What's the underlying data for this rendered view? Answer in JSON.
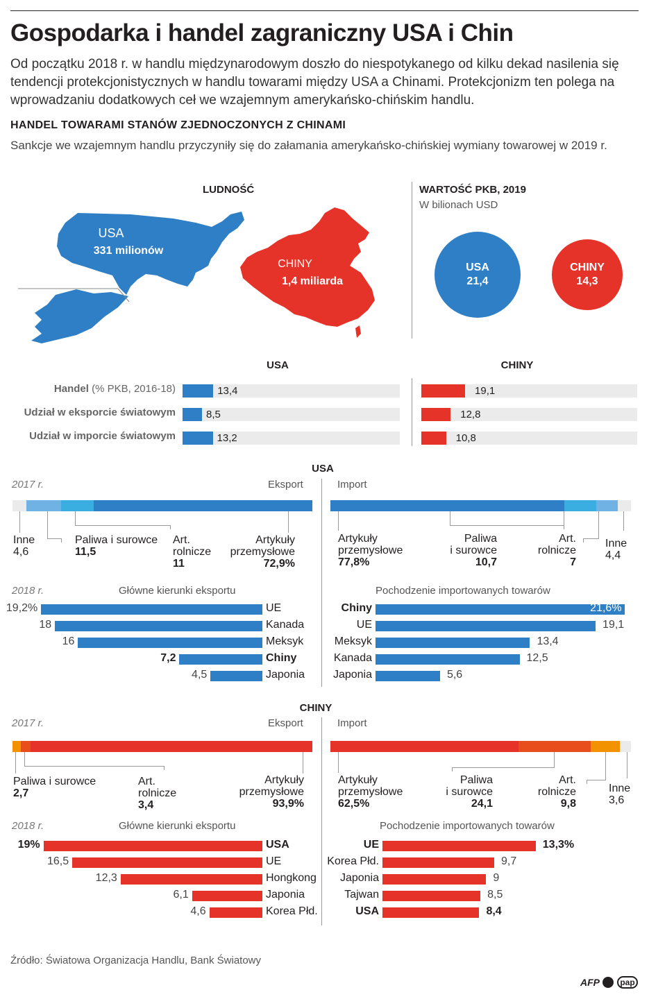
{
  "title": "Gospodarka i handel zagraniczny USA i Chin",
  "intro": "Od początku 2018 r. w handlu międzynarodowym doszło do niespotykanego od kilku dekad nasilenia się tendencji protekcjonistycznych w handlu towarami między USA a Chinami. Protekcjonizm ten polega na wprowadzaniu dodatkowych ceł we wzajemnym amerykańsko-chińskim handlu.",
  "section": {
    "title": "HANDEL TOWARAMI STANÓW ZJEDNOCZONYCH Z CHINAMI",
    "subtitle": "Sankcje we wzajemnym handlu przyczyniły się do załamania amerykańsko-chińskiej wymiany towarowej w 2019 r."
  },
  "population": {
    "title": "LUDNOŚĆ",
    "usa_name": "USA",
    "usa_value": "331 milionów",
    "china_name": "CHINY",
    "china_value": "1,4 miliarda"
  },
  "gdp": {
    "title": "WARTOŚĆ PKB, 2019",
    "unit": "W bilionach USD",
    "usa_name": "USA",
    "usa_value": "21,4",
    "china_name": "CHINY",
    "china_value": "14,3"
  },
  "colors": {
    "usa": "#2f7fc6",
    "china": "#e63329",
    "usa_light": "#6fb2e3",
    "usa_mid": "#3aaee0",
    "china_orange": "#f39200",
    "china_dark": "#e84e1b",
    "track": "#ebebeb"
  },
  "trade_share": {
    "col_usa": "USA",
    "col_china": "CHINY",
    "rows": [
      {
        "label_bold": "Handel",
        "label_rest": " (% PKB, 2016-18)",
        "usa": 13.4,
        "usa_label": "13,4",
        "china": 19.1,
        "china_label": "19,1"
      },
      {
        "label_bold": "Udział w eksporcie światowym",
        "label_rest": "",
        "usa": 8.5,
        "usa_label": "8,5",
        "china": 12.8,
        "china_label": "12,8"
      },
      {
        "label_bold": "Udział w imporcie światowym",
        "label_rest": "",
        "usa": 13.2,
        "usa_label": "13,2",
        "china": 10.8,
        "china_label": "10,8"
      }
    ]
  },
  "usa_block": {
    "header": "USA",
    "year2017": "2017 r.",
    "export_label": "Eksport",
    "import_label": "Import",
    "export_segments": [
      {
        "name": "Inne",
        "value": 4.6,
        "label": "4,6"
      },
      {
        "name": "Paliwa i surowce",
        "value": 11.5,
        "label": "11,5"
      },
      {
        "name": "Art. rolnicze",
        "value": 11,
        "label": "11"
      },
      {
        "name": "Artykuły przemysłowe",
        "value": 72.9,
        "label": "72,9%"
      }
    ],
    "import_segments": [
      {
        "name": "Artykuły przemysłowe",
        "value": 77.8,
        "label": "77,8%"
      },
      {
        "name": "Paliwa i surowce",
        "value": 10.7,
        "label": "10,7"
      },
      {
        "name": "Art. rolnicze",
        "value": 7,
        "label": "7"
      },
      {
        "name": "Inne",
        "value": 4.4,
        "label": "4,4"
      }
    ],
    "labels": {
      "inne": "Inne",
      "paliwa": "Paliwa i surowce",
      "paliwa_a": "Paliwa",
      "paliwa_b": "i surowce",
      "art_a": "Art.",
      "art_b": "rolnicze",
      "przem_a": "Artykuły",
      "przem_b": "przemysłowe"
    },
    "year2018": "2018 r.",
    "export_dest_title": "Główne kierunki eksportu",
    "import_orig_title": "Pochodzenie importowanych towarów",
    "export_dest": [
      {
        "name": "UE",
        "value": 19.2,
        "label": "19,2%",
        "bold": false
      },
      {
        "name": "Kanada",
        "value": 18,
        "label": "18",
        "bold": false
      },
      {
        "name": "Meksyk",
        "value": 16,
        "label": "16",
        "bold": false
      },
      {
        "name": "Chiny",
        "value": 7.2,
        "label": "7,2",
        "bold": true
      },
      {
        "name": "Japonia",
        "value": 4.5,
        "label": "4,5",
        "bold": false
      }
    ],
    "import_orig": [
      {
        "name": "Chiny",
        "value": 21.6,
        "label": "21,6%",
        "bold": true
      },
      {
        "name": "UE",
        "value": 19.1,
        "label": "19,1",
        "bold": false
      },
      {
        "name": "Meksyk",
        "value": 13.4,
        "label": "13,4",
        "bold": false
      },
      {
        "name": "Kanada",
        "value": 12.5,
        "label": "12,5",
        "bold": false
      },
      {
        "name": "Japonia",
        "value": 5.6,
        "label": "5,6",
        "bold": false
      }
    ]
  },
  "china_block": {
    "header": "CHINY",
    "year2017": "2017 r.",
    "export_label": "Eksport",
    "import_label": "Import",
    "export_segments": [
      {
        "name": "Paliwa i surowce",
        "value": 2.7,
        "label": "2,7"
      },
      {
        "name": "Art. rolnicze",
        "value": 3.4,
        "label": "3,4"
      },
      {
        "name": "Artykuły przemysłowe",
        "value": 93.9,
        "label": "93,9%"
      }
    ],
    "import_segments": [
      {
        "name": "Artykuły przemysłowe",
        "value": 62.5,
        "label": "62,5%"
      },
      {
        "name": "Paliwa i surowce",
        "value": 24.1,
        "label": "24,1"
      },
      {
        "name": "Art. rolnicze",
        "value": 9.8,
        "label": "9,8"
      },
      {
        "name": "Inne",
        "value": 3.6,
        "label": "3,6"
      }
    ],
    "labels": {
      "inne": "Inne",
      "paliwa": "Paliwa i surowce",
      "paliwa_a": "Paliwa",
      "paliwa_b": "i surowce",
      "art_a": "Art.",
      "art_b": "rolnicze",
      "przem_a": "Artykuły",
      "przem_b": "przemysłowe"
    },
    "year2018": "2018 r.",
    "export_dest_title": "Główne kierunki eksportu",
    "import_orig_title": "Pochodzenie importowanych towarów",
    "export_dest": [
      {
        "name": "USA",
        "value": 19,
        "label": "19%",
        "bold": true
      },
      {
        "name": "UE",
        "value": 16.5,
        "label": "16,5",
        "bold": false
      },
      {
        "name": "Hongkong",
        "value": 12.3,
        "label": "12,3",
        "bold": false
      },
      {
        "name": "Japonia",
        "value": 6.1,
        "label": "6,1",
        "bold": false
      },
      {
        "name": "Korea Płd.",
        "value": 4.6,
        "label": "4,6",
        "bold": false
      }
    ],
    "import_orig": [
      {
        "name": "UE",
        "value": 13.3,
        "label": "13,3%",
        "bold": true
      },
      {
        "name": "Korea Płd.",
        "value": 9.7,
        "label": "9,7",
        "bold": false
      },
      {
        "name": "Japonia",
        "value": 9,
        "label": "9",
        "bold": false
      },
      {
        "name": "Tajwan",
        "value": 8.5,
        "label": "8,5",
        "bold": false
      },
      {
        "name": "USA",
        "value": 8.4,
        "label": "8,4",
        "bold": true
      }
    ]
  },
  "source": "Źródło: Światowa Organizacja Handlu, Bank Światowy",
  "logos": {
    "afp": "AFP",
    "pap": "pap"
  },
  "chart_data": [
    {
      "type": "bar",
      "title": "Handel (% PKB, 2016-18)",
      "categories": [
        "USA",
        "CHINY"
      ],
      "values": [
        13.4,
        19.1
      ]
    },
    {
      "type": "bar",
      "title": "Udział w eksporcie światowym",
      "categories": [
        "USA",
        "CHINY"
      ],
      "values": [
        8.5,
        12.8
      ]
    },
    {
      "type": "bar",
      "title": "Udział w imporcie światowym",
      "categories": [
        "USA",
        "CHINY"
      ],
      "values": [
        13.2,
        10.8
      ]
    },
    {
      "type": "bar",
      "title": "WARTOŚĆ PKB, 2019",
      "ylabel": "W bilionach USD",
      "categories": [
        "USA",
        "CHINY"
      ],
      "values": [
        21.4,
        14.3
      ]
    }
  ]
}
